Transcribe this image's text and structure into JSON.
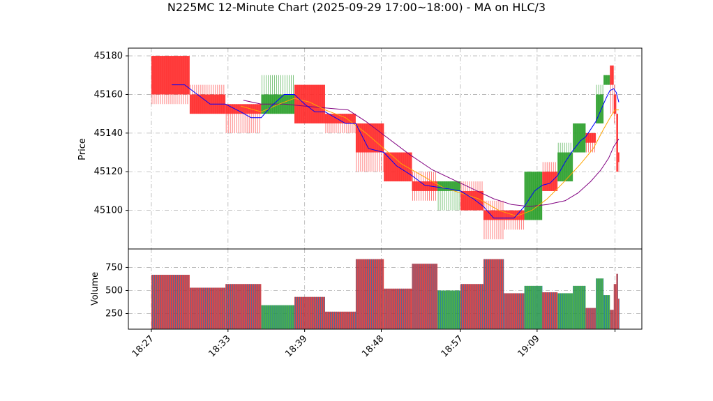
{
  "chart_data": [
    {
      "type": "candlestick",
      "title": "N225MC 12-Minute Chart (2025-09-29 17:00~18:00) - MA on HLC/3",
      "ylabel": "Price",
      "ylim": [
        45080,
        45184
      ],
      "yticks": [
        45100,
        45120,
        45140,
        45160,
        45180
      ],
      "grid": true,
      "colors": {
        "up": "#2ca02c",
        "down": "#ff2a2a",
        "ma_fast": "#0000ff",
        "ma_mid": "#ffa500",
        "ma_slow": "#800080"
      },
      "candles": [
        {
          "x": 0.0,
          "w": 1.5,
          "o": 45180,
          "c": 45160,
          "h": 45180,
          "l": 45155,
          "up": false
        },
        {
          "x": 1.5,
          "w": 1.4,
          "o": 45160,
          "c": 45150,
          "h": 45165,
          "l": 45150,
          "up": false
        },
        {
          "x": 2.9,
          "w": 1.4,
          "o": 45155,
          "c": 45150,
          "h": 45155,
          "l": 45140,
          "up": false
        },
        {
          "x": 4.3,
          "w": 1.3,
          "o": 45150,
          "c": 45160,
          "h": 45170,
          "l": 45150,
          "up": true
        },
        {
          "x": 5.6,
          "w": 1.2,
          "o": 45165,
          "c": 45145,
          "h": 45165,
          "l": 45145,
          "up": false
        },
        {
          "x": 6.8,
          "w": 1.2,
          "o": 45150,
          "c": 45145,
          "h": 45150,
          "l": 45140,
          "up": false
        },
        {
          "x": 8.0,
          "w": 1.1,
          "o": 45145,
          "c": 45130,
          "h": 45145,
          "l": 45120,
          "up": false
        },
        {
          "x": 9.1,
          "w": 1.1,
          "o": 45130,
          "c": 45115,
          "h": 45130,
          "l": 45115,
          "up": false
        },
        {
          "x": 10.2,
          "w": 1.0,
          "o": 45115,
          "c": 45110,
          "h": 45120,
          "l": 45105,
          "up": false
        },
        {
          "x": 11.2,
          "w": 0.9,
          "o": 45110,
          "c": 45115,
          "h": 45115,
          "l": 45100,
          "up": true
        },
        {
          "x": 12.1,
          "w": 0.9,
          "o": 45110,
          "c": 45100,
          "h": 45115,
          "l": 45100,
          "up": false
        },
        {
          "x": 13.0,
          "w": 0.8,
          "o": 45100,
          "c": 45095,
          "h": 45105,
          "l": 45085,
          "up": false
        },
        {
          "x": 13.8,
          "w": 0.8,
          "o": 45100,
          "c": 45095,
          "h": 45100,
          "l": 45090,
          "up": false
        },
        {
          "x": 14.6,
          "w": 0.7,
          "o": 45095,
          "c": 45120,
          "h": 45120,
          "l": 45095,
          "up": true
        },
        {
          "x": 15.3,
          "w": 0.6,
          "o": 45120,
          "c": 45110,
          "h": 45125,
          "l": 45110,
          "up": false
        },
        {
          "x": 15.9,
          "w": 0.6,
          "o": 45115,
          "c": 45130,
          "h": 45135,
          "l": 45115,
          "up": true
        },
        {
          "x": 16.5,
          "w": 0.5,
          "o": 45130,
          "c": 45145,
          "h": 45145,
          "l": 45130,
          "up": true
        },
        {
          "x": 17.0,
          "w": 0.4,
          "o": 45140,
          "c": 45135,
          "h": 45140,
          "l": 45130,
          "up": false
        },
        {
          "x": 17.4,
          "w": 0.3,
          "o": 45145,
          "c": 45160,
          "h": 45165,
          "l": 45145,
          "up": true
        },
        {
          "x": 17.7,
          "w": 0.25,
          "o": 45165,
          "c": 45170,
          "h": 45170,
          "l": 45165,
          "up": true
        },
        {
          "x": 17.95,
          "w": 0.15,
          "o": 45175,
          "c": 45165,
          "h": 45175,
          "l": 45150,
          "up": false
        },
        {
          "x": 18.1,
          "w": 0.1,
          "o": 45160,
          "c": 45150,
          "h": 45165,
          "l": 45145,
          "up": false
        },
        {
          "x": 18.2,
          "w": 0.07,
          "o": 45150,
          "c": 45120,
          "h": 45150,
          "l": 45120,
          "up": false
        },
        {
          "x": 18.27,
          "w": 0.05,
          "o": 45130,
          "c": 45125,
          "h": 45130,
          "l": 45120,
          "up": false
        }
      ],
      "ma_fast": [
        [
          0.8,
          45165
        ],
        [
          1.3,
          45165
        ],
        [
          2.3,
          45155
        ],
        [
          2.9,
          45155
        ],
        [
          3.5,
          45151
        ],
        [
          3.9,
          45148
        ],
        [
          4.3,
          45148
        ],
        [
          4.7,
          45154
        ],
        [
          5.2,
          45160
        ],
        [
          5.6,
          45160
        ],
        [
          6.0,
          45155
        ],
        [
          6.4,
          45151
        ],
        [
          6.8,
          45151
        ],
        [
          7.2,
          45148
        ],
        [
          7.6,
          45145
        ],
        [
          8.0,
          45145
        ],
        [
          8.5,
          45132
        ],
        [
          9.1,
          45130
        ],
        [
          9.6,
          45123
        ],
        [
          10.2,
          45118
        ],
        [
          10.7,
          45113
        ],
        [
          11.2,
          45112
        ],
        [
          11.7,
          45111
        ],
        [
          12.1,
          45110
        ],
        [
          12.6,
          45106
        ],
        [
          13.0,
          45102
        ],
        [
          13.4,
          45096
        ],
        [
          13.8,
          45096
        ],
        [
          14.2,
          45096
        ],
        [
          14.6,
          45102
        ],
        [
          15.0,
          45110
        ],
        [
          15.3,
          45113
        ],
        [
          15.6,
          45114
        ],
        [
          15.9,
          45118
        ],
        [
          16.2,
          45125
        ],
        [
          16.5,
          45131
        ],
        [
          16.8,
          45136
        ],
        [
          17.0,
          45138
        ],
        [
          17.2,
          45142
        ],
        [
          17.4,
          45146
        ],
        [
          17.6,
          45152
        ],
        [
          17.8,
          45158
        ],
        [
          17.95,
          45162
        ],
        [
          18.1,
          45163
        ],
        [
          18.2,
          45161
        ],
        [
          18.3,
          45156
        ]
      ],
      "ma_mid": [
        [
          3.5,
          45154
        ],
        [
          4.3,
          45151
        ],
        [
          5.0,
          45155
        ],
        [
          5.6,
          45158
        ],
        [
          6.2,
          45156
        ],
        [
          6.8,
          45152
        ],
        [
          7.6,
          45148
        ],
        [
          8.4,
          45140
        ],
        [
          9.1,
          45132
        ],
        [
          9.8,
          45124
        ],
        [
          10.6,
          45118
        ],
        [
          11.4,
          45112
        ],
        [
          12.1,
          45109
        ],
        [
          12.8,
          45106
        ],
        [
          13.6,
          45100
        ],
        [
          14.3,
          45097
        ],
        [
          14.9,
          45100
        ],
        [
          15.5,
          45106
        ],
        [
          16.1,
          45114
        ],
        [
          16.8,
          45124
        ],
        [
          17.3,
          45132
        ],
        [
          17.7,
          45142
        ],
        [
          18.0,
          45149
        ],
        [
          18.15,
          45152
        ],
        [
          18.3,
          45152
        ]
      ],
      "ma_slow": [
        [
          3.6,
          45157
        ],
        [
          4.3,
          45155
        ],
        [
          5.2,
          45155
        ],
        [
          6.0,
          45154
        ],
        [
          6.8,
          45153
        ],
        [
          7.7,
          45152
        ],
        [
          8.4,
          45146
        ],
        [
          9.2,
          45138
        ],
        [
          10.1,
          45129
        ],
        [
          11.0,
          45121
        ],
        [
          11.8,
          45116
        ],
        [
          12.6,
          45111
        ],
        [
          13.4,
          45106
        ],
        [
          14.1,
          45103
        ],
        [
          14.8,
          45102
        ],
        [
          15.5,
          45103
        ],
        [
          16.2,
          45105
        ],
        [
          16.7,
          45109
        ],
        [
          17.2,
          45115
        ],
        [
          17.6,
          45121
        ],
        [
          17.9,
          45127
        ],
        [
          18.1,
          45133
        ],
        [
          18.3,
          45137
        ]
      ]
    },
    {
      "type": "bar",
      "ylabel": "Volume",
      "ylim": [
        80,
        950
      ],
      "yticks": [
        250,
        500,
        750
      ],
      "grid": true,
      "x_range": [
        -0.9,
        19.2
      ],
      "xticks": [
        {
          "x": 0.0,
          "label": "18:27"
        },
        {
          "x": 3.0,
          "label": "18:33"
        },
        {
          "x": 6.0,
          "label": "18:39"
        },
        {
          "x": 9.0,
          "label": "18:48"
        },
        {
          "x": 12.1,
          "label": "18:57"
        },
        {
          "x": 15.1,
          "label": "19:09"
        },
        {
          "x": 18.15,
          "label": ""
        }
      ],
      "bars": [
        {
          "x": 0.0,
          "w": 1.5,
          "v": 670,
          "up": false
        },
        {
          "x": 1.5,
          "w": 1.4,
          "v": 530,
          "up": false
        },
        {
          "x": 2.9,
          "w": 1.4,
          "v": 570,
          "up": false
        },
        {
          "x": 4.3,
          "w": 1.3,
          "v": 340,
          "up": true
        },
        {
          "x": 5.6,
          "w": 1.2,
          "v": 430,
          "up": false
        },
        {
          "x": 6.8,
          "w": 1.2,
          "v": 270,
          "up": false
        },
        {
          "x": 8.0,
          "w": 1.1,
          "v": 840,
          "up": false
        },
        {
          "x": 9.1,
          "w": 1.1,
          "v": 520,
          "up": false
        },
        {
          "x": 10.2,
          "w": 1.0,
          "v": 790,
          "up": false
        },
        {
          "x": 11.2,
          "w": 0.9,
          "v": 500,
          "up": true
        },
        {
          "x": 12.1,
          "w": 0.9,
          "v": 570,
          "up": false
        },
        {
          "x": 13.0,
          "w": 0.8,
          "v": 840,
          "up": false
        },
        {
          "x": 13.8,
          "w": 0.8,
          "v": 470,
          "up": false
        },
        {
          "x": 14.6,
          "w": 0.7,
          "v": 550,
          "up": true
        },
        {
          "x": 15.3,
          "w": 0.6,
          "v": 480,
          "up": false
        },
        {
          "x": 15.9,
          "w": 0.6,
          "v": 470,
          "up": true
        },
        {
          "x": 16.5,
          "w": 0.5,
          "v": 550,
          "up": true
        },
        {
          "x": 17.0,
          "w": 0.4,
          "v": 310,
          "up": false
        },
        {
          "x": 17.4,
          "w": 0.3,
          "v": 630,
          "up": true
        },
        {
          "x": 17.7,
          "w": 0.25,
          "v": 450,
          "up": true
        },
        {
          "x": 17.95,
          "w": 0.15,
          "v": 290,
          "up": false
        },
        {
          "x": 18.1,
          "w": 0.1,
          "v": 570,
          "up": false
        },
        {
          "x": 18.2,
          "w": 0.07,
          "v": 680,
          "up": false
        },
        {
          "x": 18.27,
          "w": 0.05,
          "v": 410,
          "up": false
        }
      ]
    }
  ]
}
